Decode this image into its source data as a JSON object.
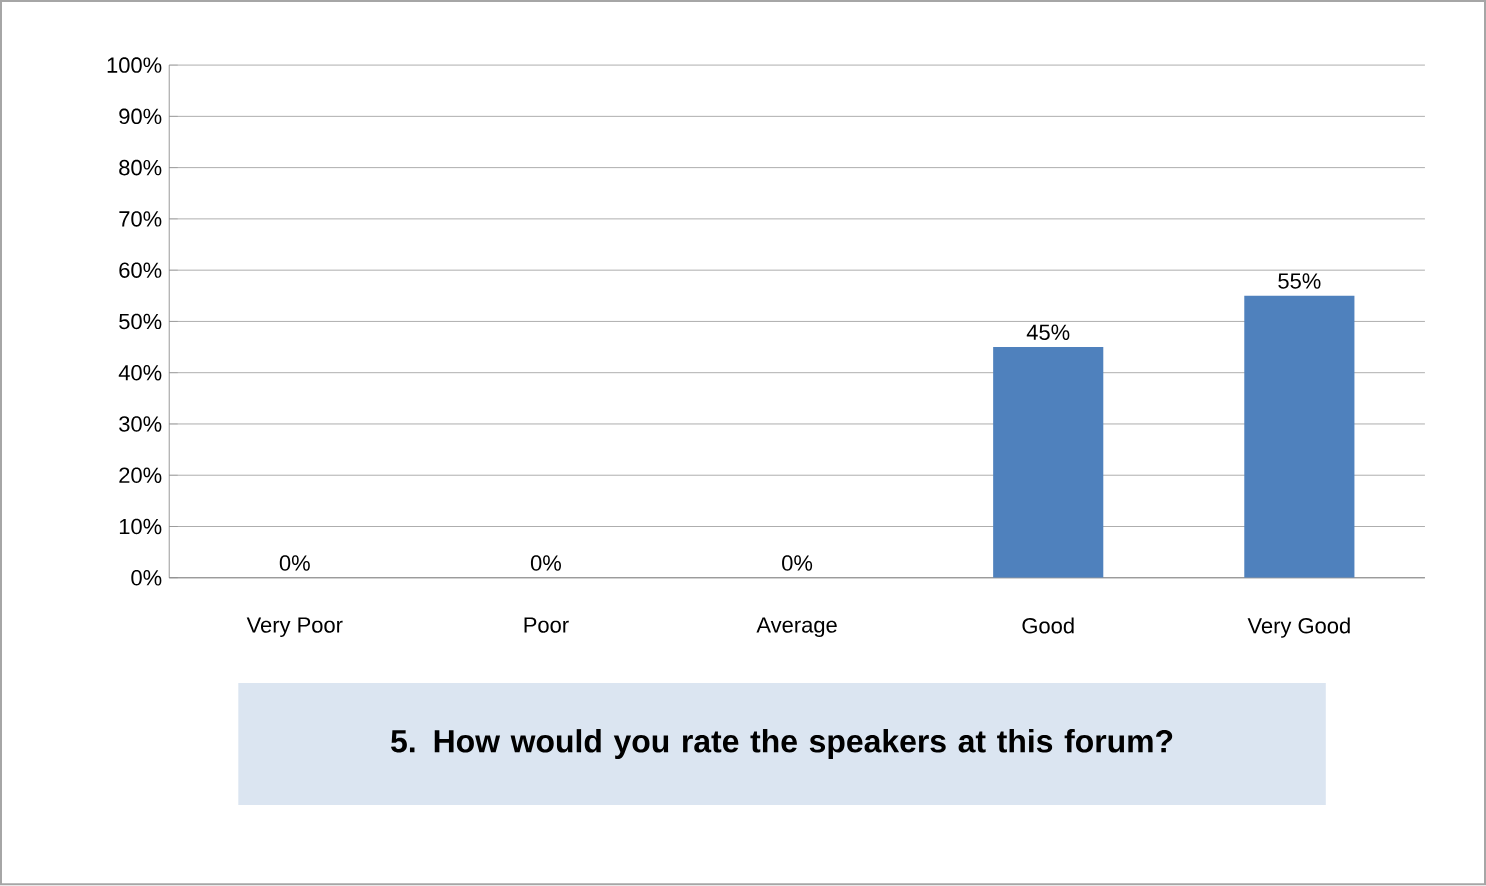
{
  "chart_data": {
    "type": "bar",
    "title": "5.    How would you rate the speakers at this forum?",
    "categories": [
      "Very Poor",
      "Poor",
      "Average",
      "Good",
      "Very Good"
    ],
    "values": [
      0,
      0,
      0,
      45,
      55
    ],
    "value_labels": [
      "0%",
      "0%",
      "0%",
      "45%",
      "55%"
    ],
    "color": "#4f81bd",
    "ylim": [
      0,
      100
    ],
    "yticks": [
      {
        "value": 0,
        "label": "0%"
      },
      {
        "value": 10,
        "label": "10%"
      },
      {
        "value": 20,
        "label": "20%"
      },
      {
        "value": 30,
        "label": "30%"
      },
      {
        "value": 40,
        "label": "40%"
      },
      {
        "value": 50,
        "label": "50%"
      },
      {
        "value": 60,
        "label": "60%"
      },
      {
        "value": 70,
        "label": "70%"
      },
      {
        "value": 80,
        "label": "80%"
      },
      {
        "value": 90,
        "label": "90%"
      },
      {
        "value": 100,
        "label": "100%"
      }
    ],
    "grid": "y"
  }
}
